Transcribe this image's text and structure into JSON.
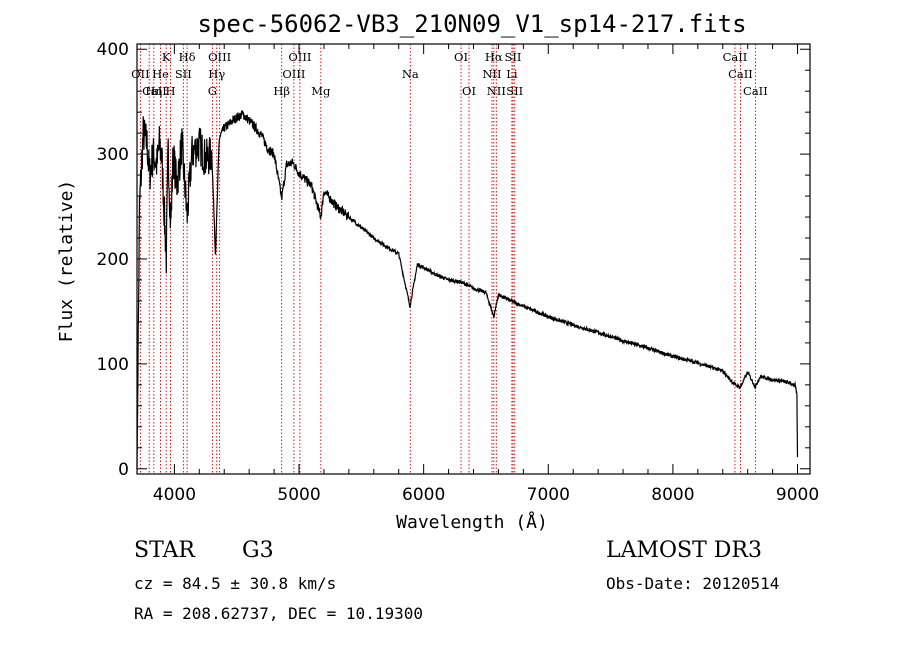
{
  "chart_data": {
    "type": "line",
    "title": "spec-56062-VB3_210N09_V1_sp14-217.fits",
    "xlabel": "Wavelength (Å)",
    "ylabel": "Flux (relative)",
    "xlim": [
      3700,
      9100
    ],
    "ylim": [
      -5,
      405
    ],
    "xticks": [
      4000,
      5000,
      6000,
      7000,
      8000,
      9000
    ],
    "yticks": [
      0,
      100,
      200,
      300,
      400
    ],
    "spectrum": {
      "x": [
        3700,
        3720,
        3750,
        3780,
        3800,
        3830,
        3860,
        3880,
        3900,
        3935,
        3950,
        3970,
        3990,
        4020,
        4060,
        4102,
        4140,
        4200,
        4250,
        4300,
        4330,
        4360,
        4400,
        4450,
        4500,
        4550,
        4600,
        4650,
        4700,
        4750,
        4800,
        4861,
        4900,
        4950,
        5000,
        5100,
        5175,
        5200,
        5300,
        5400,
        5500,
        5600,
        5700,
        5800,
        5890,
        5950,
        6000,
        6100,
        6200,
        6300,
        6400,
        6500,
        6563,
        6600,
        6700,
        6800,
        6900,
        7000,
        7200,
        7400,
        7600,
        7800,
        8000,
        8200,
        8400,
        8498,
        8542,
        8600,
        8662,
        8700,
        8800,
        8900,
        8980,
        8995,
        9000
      ],
      "y": [
        0,
        250,
        320,
        310,
        280,
        300,
        290,
        310,
        295,
        200,
        305,
        230,
        300,
        270,
        310,
        240,
        300,
        310,
        295,
        300,
        205,
        315,
        325,
        330,
        335,
        338,
        332,
        325,
        318,
        305,
        300,
        258,
        290,
        292,
        282,
        270,
        240,
        265,
        250,
        240,
        230,
        220,
        212,
        205,
        155,
        195,
        192,
        185,
        180,
        178,
        172,
        168,
        145,
        166,
        160,
        155,
        150,
        145,
        137,
        130,
        122,
        115,
        107,
        101,
        93,
        80,
        78,
        92,
        78,
        88,
        85,
        83,
        80,
        70,
        10
      ]
    },
    "lines": [
      {
        "label": "Hδ",
        "wl": 4102,
        "row": 1
      },
      {
        "label": "K",
        "wl": 3934,
        "row": 1
      },
      {
        "label": "Hδ",
        "wl": 4102,
        "row": 1
      },
      {
        "label": "OIII",
        "wl": 4363,
        "row": 1
      },
      {
        "label": "OIII",
        "wl": 5007,
        "row": 1
      },
      {
        "label": "OI",
        "wl": 6300,
        "row": 1
      },
      {
        "label": "Hα",
        "wl": 6563,
        "row": 1
      },
      {
        "label": "SII",
        "wl": 6717,
        "row": 1
      },
      {
        "label": "CaII",
        "wl": 8498,
        "row": 1
      },
      {
        "label": "OII",
        "wl": 3727,
        "row": 2
      },
      {
        "label": "He",
        "wl": 3889,
        "row": 2
      },
      {
        "label": "SII",
        "wl": 4072,
        "row": 2
      },
      {
        "label": "Hγ",
        "wl": 4340,
        "row": 2
      },
      {
        "label": "OIII",
        "wl": 4959,
        "row": 2
      },
      {
        "label": "Na",
        "wl": 5893,
        "row": 2
      },
      {
        "label": "NII",
        "wl": 6548,
        "row": 2
      },
      {
        "label": "Li",
        "wl": 6708,
        "row": 2
      },
      {
        "label": "CaII",
        "wl": 8542,
        "row": 2
      },
      {
        "label": "CaII",
        "wl": 3840,
        "row": 3
      },
      {
        "label": "Hη",
        "wl": 3835,
        "row": 3
      },
      {
        "label": "H",
        "wl": 3969,
        "row": 3
      },
      {
        "label": "G",
        "wl": 4305,
        "row": 3
      },
      {
        "label": "Hβ",
        "wl": 4861,
        "row": 3
      },
      {
        "label": "Mg",
        "wl": 5175,
        "row": 3
      },
      {
        "label": "OI",
        "wl": 6364,
        "row": 3
      },
      {
        "label": "NII",
        "wl": 6583,
        "row": 3
      },
      {
        "label": "SII",
        "wl": 6731,
        "row": 3
      },
      {
        "label": "CaII",
        "wl": 8662,
        "row": 3
      }
    ],
    "marker_lines": [
      3727,
      3798,
      3835,
      3889,
      3934,
      3969,
      4072,
      4102,
      4305,
      4340,
      4363,
      4861,
      4959,
      5007,
      5175,
      5893,
      6300,
      6364,
      6548,
      6563,
      6583,
      6708,
      6717,
      6731,
      8498,
      8542,
      8662
    ]
  },
  "info": {
    "class": "STAR",
    "subclass": "G3",
    "survey": "LAMOST DR3",
    "cz": "cz = 84.5 ± 30.8 km/s",
    "obs_date": "Obs-Date: 20120514",
    "coords": "RA = 208.62737, DEC =  10.19300"
  },
  "colors": {
    "axis": "#000000",
    "spectrum": "#000000",
    "marker": "#cc0000"
  }
}
